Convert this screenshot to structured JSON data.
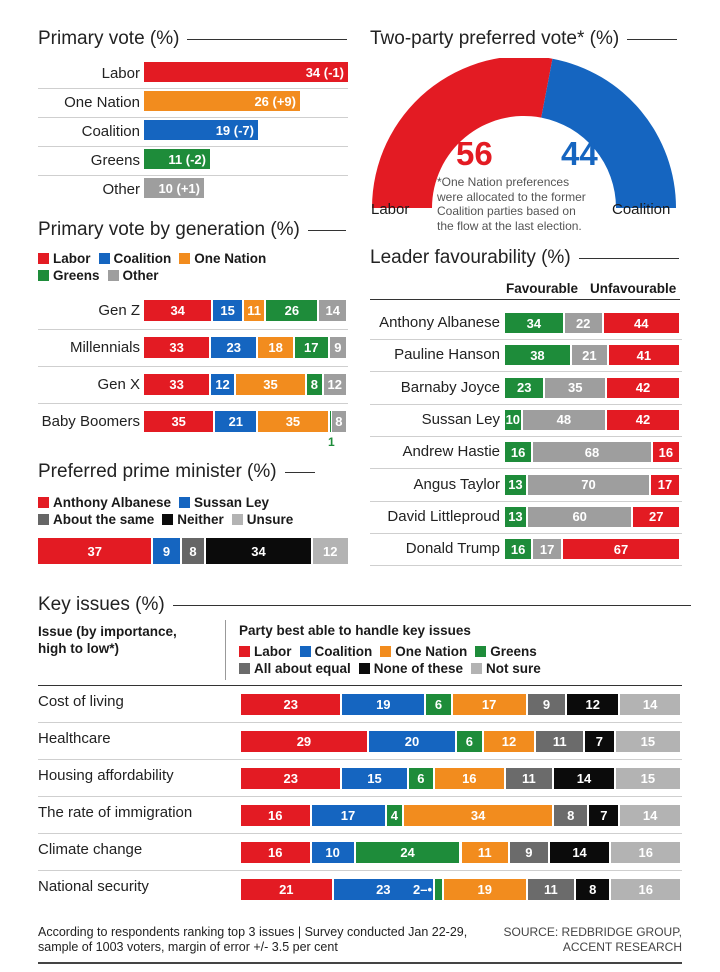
{
  "colors": {
    "labor": "#e31b23",
    "coalition": "#1565c0",
    "one_nation": "#f28c1e",
    "greens": "#1e8c3a",
    "other": "#9e9e9e",
    "same": "#666666",
    "neither": "#0b0b0b",
    "unsure": "#b3b3b3",
    "equal": "#6b6b6b"
  },
  "primary": {
    "title": "Primary vote (%)",
    "rows": [
      {
        "label": "Labor",
        "value": 34,
        "text": "34 (-1)",
        "color": "labor"
      },
      {
        "label": "One Nation",
        "value": 26,
        "text": "26 (+9)",
        "color": "one_nation"
      },
      {
        "label": "Coalition",
        "value": 19,
        "text": "19 (-7)",
        "color": "coalition"
      },
      {
        "label": "Greens",
        "value": 11,
        "text": "11 (-2)",
        "color": "greens"
      },
      {
        "label": "Other",
        "value": 10,
        "text": "10 (+1)",
        "color": "other"
      }
    ]
  },
  "tpp": {
    "title": "Two-party preferred vote* (%)",
    "labor_value": 56,
    "coalition_value": 44,
    "labor_text": "56",
    "coalition_text": "44",
    "labor_label": "Labor",
    "coalition_label": "Coalition",
    "note": [
      "*One Nation preferences",
      "were allocated to the former",
      "Coalition parties based on",
      "the flow at the last election."
    ]
  },
  "generation": {
    "title": "Primary vote by generation (%)",
    "legend": [
      {
        "label": "Labor",
        "color": "labor"
      },
      {
        "label": "Coalition",
        "color": "coalition"
      },
      {
        "label": "One Nation",
        "color": "one_nation"
      },
      {
        "label": "Greens",
        "color": "greens"
      },
      {
        "label": "Other",
        "color": "other"
      }
    ],
    "rows": [
      {
        "label": "Gen Z",
        "segs": [
          {
            "v": 34,
            "t": "34",
            "c": "labor"
          },
          {
            "v": 15,
            "t": "15",
            "c": "coalition"
          },
          {
            "v": 11,
            "t": "11",
            "c": "one_nation"
          },
          {
            "v": 26,
            "t": "26",
            "c": "greens"
          },
          {
            "v": 14,
            "t": "14",
            "c": "other"
          }
        ]
      },
      {
        "label": "Millennials",
        "segs": [
          {
            "v": 33,
            "t": "33",
            "c": "labor"
          },
          {
            "v": 23,
            "t": "23",
            "c": "coalition"
          },
          {
            "v": 18,
            "t": "18",
            "c": "one_nation"
          },
          {
            "v": 17,
            "t": "17",
            "c": "greens"
          },
          {
            "v": 9,
            "t": "9",
            "c": "other"
          }
        ]
      },
      {
        "label": "Gen X",
        "segs": [
          {
            "v": 33,
            "t": "33",
            "c": "labor"
          },
          {
            "v": 12,
            "t": "12",
            "c": "coalition"
          },
          {
            "v": 35,
            "t": "35",
            "c": "one_nation"
          },
          {
            "v": 8,
            "t": "8",
            "c": "greens"
          },
          {
            "v": 12,
            "t": "12",
            "c": "other"
          }
        ]
      },
      {
        "label": "Baby Boomers",
        "segs": [
          {
            "v": 35,
            "t": "35",
            "c": "labor"
          },
          {
            "v": 21,
            "t": "21",
            "c": "coalition"
          },
          {
            "v": 35,
            "t": "35",
            "c": "one_nation"
          },
          {
            "v": 1,
            "t": "",
            "c": "greens"
          },
          {
            "v": 8,
            "t": "8",
            "c": "other"
          }
        ],
        "note": "1"
      }
    ]
  },
  "ppm": {
    "title": "Preferred prime minister (%)",
    "legend": [
      {
        "label": "Anthony Albanese",
        "color": "labor"
      },
      {
        "label": "Sussan Ley",
        "color": "coalition"
      },
      {
        "label": "About the same",
        "color": "same"
      },
      {
        "label": "Neither",
        "color": "neither"
      },
      {
        "label": "Unsure",
        "color": "unsure"
      }
    ],
    "segs": [
      {
        "v": 37,
        "t": "37",
        "c": "labor"
      },
      {
        "v": 9,
        "t": "9",
        "c": "coalition"
      },
      {
        "v": 8,
        "t": "8",
        "c": "same"
      },
      {
        "v": 34,
        "t": "34",
        "c": "neither"
      },
      {
        "v": 12,
        "t": "12",
        "c": "unsure"
      }
    ]
  },
  "leader": {
    "title": "Leader favourability (%)",
    "col_fav": "Favourable",
    "col_unfav": "Unfavourable",
    "rows": [
      {
        "label": "Anthony Albanese",
        "fav": 34,
        "mid": 22,
        "unfav": 44
      },
      {
        "label": "Pauline Hanson",
        "fav": 38,
        "mid": 21,
        "unfav": 41
      },
      {
        "label": "Barnaby Joyce",
        "fav": 23,
        "mid": 35,
        "unfav": 42
      },
      {
        "label": "Sussan Ley",
        "fav": 10,
        "mid": 48,
        "unfav": 42
      },
      {
        "label": "Andrew Hastie",
        "fav": 16,
        "mid": 68,
        "unfav": 16
      },
      {
        "label": "Angus Taylor",
        "fav": 13,
        "mid": 70,
        "unfav": 17
      },
      {
        "label": "David Littleproud",
        "fav": 13,
        "mid": 60,
        "unfav": 27
      },
      {
        "label": "Donald Trump",
        "fav": 16,
        "mid": 17,
        "unfav": 67
      }
    ]
  },
  "issues": {
    "title": "Key issues (%)",
    "col_issue": [
      "Issue (by importance,",
      "high to low*)"
    ],
    "col_party": "Party best able to handle key issues",
    "legend": [
      {
        "label": "Labor",
        "color": "labor"
      },
      {
        "label": "Coalition",
        "color": "coalition"
      },
      {
        "label": "One Nation",
        "color": "one_nation"
      },
      {
        "label": "Greens",
        "color": "greens"
      },
      {
        "label": "All about equal",
        "color": "equal"
      },
      {
        "label": "None of these",
        "color": "neither"
      },
      {
        "label": "Not sure",
        "color": "unsure"
      }
    ],
    "rows": [
      {
        "label": "Cost of living",
        "segs": [
          {
            "v": 23,
            "t": "23",
            "c": "labor"
          },
          {
            "v": 19,
            "t": "19",
            "c": "coalition"
          },
          {
            "v": 6,
            "t": "6",
            "c": "greens"
          },
          {
            "v": 17,
            "t": "17",
            "c": "one_nation"
          },
          {
            "v": 9,
            "t": "9",
            "c": "equal"
          },
          {
            "v": 12,
            "t": "12",
            "c": "neither"
          },
          {
            "v": 14,
            "t": "14",
            "c": "unsure"
          }
        ]
      },
      {
        "label": "Healthcare",
        "segs": [
          {
            "v": 29,
            "t": "29",
            "c": "labor"
          },
          {
            "v": 20,
            "t": "20",
            "c": "coalition"
          },
          {
            "v": 6,
            "t": "6",
            "c": "greens"
          },
          {
            "v": 12,
            "t": "12",
            "c": "one_nation"
          },
          {
            "v": 11,
            "t": "11",
            "c": "equal"
          },
          {
            "v": 7,
            "t": "7",
            "c": "neither"
          },
          {
            "v": 15,
            "t": "15",
            "c": "unsure"
          }
        ]
      },
      {
        "label": "Housing affordability",
        "segs": [
          {
            "v": 23,
            "t": "23",
            "c": "labor"
          },
          {
            "v": 15,
            "t": "15",
            "c": "coalition"
          },
          {
            "v": 6,
            "t": "6",
            "c": "greens"
          },
          {
            "v": 16,
            "t": "16",
            "c": "one_nation"
          },
          {
            "v": 11,
            "t": "11",
            "c": "equal"
          },
          {
            "v": 14,
            "t": "14",
            "c": "neither"
          },
          {
            "v": 15,
            "t": "15",
            "c": "unsure"
          }
        ]
      },
      {
        "label": "The rate of immigration",
        "segs": [
          {
            "v": 16,
            "t": "16",
            "c": "labor"
          },
          {
            "v": 17,
            "t": "17",
            "c": "coalition"
          },
          {
            "v": 4,
            "t": "4",
            "c": "greens"
          },
          {
            "v": 34,
            "t": "34",
            "c": "one_nation"
          },
          {
            "v": 8,
            "t": "8",
            "c": "equal"
          },
          {
            "v": 7,
            "t": "7",
            "c": "neither"
          },
          {
            "v": 14,
            "t": "14",
            "c": "unsure"
          }
        ]
      },
      {
        "label": "Climate change",
        "segs": [
          {
            "v": 16,
            "t": "16",
            "c": "labor"
          },
          {
            "v": 10,
            "t": "10",
            "c": "coalition"
          },
          {
            "v": 24,
            "t": "24",
            "c": "greens"
          },
          {
            "v": 11,
            "t": "11",
            "c": "one_nation"
          },
          {
            "v": 9,
            "t": "9",
            "c": "equal"
          },
          {
            "v": 14,
            "t": "14",
            "c": "neither"
          },
          {
            "v": 16,
            "t": "16",
            "c": "unsure"
          }
        ]
      },
      {
        "label": "National security",
        "segs": [
          {
            "v": 21,
            "t": "21",
            "c": "labor"
          },
          {
            "v": 23,
            "t": "23",
            "c": "coalition"
          },
          {
            "v": 2,
            "t": "",
            "c": "greens"
          },
          {
            "v": 19,
            "t": "19",
            "c": "one_nation"
          },
          {
            "v": 11,
            "t": "11",
            "c": "equal"
          },
          {
            "v": 8,
            "t": "8",
            "c": "neither"
          },
          {
            "v": 16,
            "t": "16",
            "c": "unsure"
          }
        ],
        "note": "2"
      }
    ]
  },
  "footer": {
    "left": [
      "According to respondents ranking top 3 issues | Survey conducted Jan 22-29,",
      "sample of 1003 voters, margin of error +/- 3.5 per cent"
    ],
    "right": [
      "SOURCE: REDBRIDGE GROUP,",
      "ACCENT RESEARCH"
    ]
  },
  "chart_data": [
    {
      "type": "bar",
      "title": "Primary vote (%)",
      "categories": [
        "Labor",
        "One Nation",
        "Coalition",
        "Greens",
        "Other"
      ],
      "values": [
        34,
        26,
        19,
        11,
        10
      ],
      "changes": [
        "-1",
        "+9",
        "-7",
        "-2",
        "+1"
      ]
    },
    {
      "type": "pie",
      "title": "Two-party preferred vote* (%)",
      "categories": [
        "Labor",
        "Coalition"
      ],
      "values": [
        56,
        44
      ]
    },
    {
      "type": "bar",
      "stacked": true,
      "title": "Primary vote by generation (%)",
      "categories": [
        "Gen Z",
        "Millennials",
        "Gen X",
        "Baby Boomers"
      ],
      "series": [
        {
          "name": "Labor",
          "values": [
            34,
            33,
            33,
            35
          ]
        },
        {
          "name": "Coalition",
          "values": [
            15,
            23,
            12,
            21
          ]
        },
        {
          "name": "One Nation",
          "values": [
            11,
            18,
            35,
            35
          ]
        },
        {
          "name": "Greens",
          "values": [
            26,
            17,
            8,
            1
          ]
        },
        {
          "name": "Other",
          "values": [
            14,
            9,
            12,
            8
          ]
        }
      ]
    },
    {
      "type": "bar",
      "stacked": true,
      "title": "Preferred prime minister (%)",
      "categories": [
        "Anthony Albanese",
        "Sussan Ley",
        "About the same",
        "Neither",
        "Unsure"
      ],
      "values": [
        37,
        9,
        8,
        34,
        12
      ]
    },
    {
      "type": "bar",
      "stacked": true,
      "title": "Leader favourability (%)",
      "categories": [
        "Anthony Albanese",
        "Pauline Hanson",
        "Barnaby Joyce",
        "Sussan Ley",
        "Andrew Hastie",
        "Angus Taylor",
        "David Littleproud",
        "Donald Trump"
      ],
      "series": [
        {
          "name": "Favourable",
          "values": [
            34,
            38,
            23,
            10,
            16,
            13,
            13,
            16
          ]
        },
        {
          "name": "Neutral",
          "values": [
            22,
            21,
            35,
            48,
            68,
            70,
            60,
            17
          ]
        },
        {
          "name": "Unfavourable",
          "values": [
            44,
            41,
            42,
            42,
            16,
            17,
            27,
            67
          ]
        }
      ]
    },
    {
      "type": "bar",
      "stacked": true,
      "title": "Key issues (%)",
      "categories": [
        "Cost of living",
        "Healthcare",
        "Housing affordability",
        "The rate of immigration",
        "Climate change",
        "National security"
      ],
      "series": [
        {
          "name": "Labor",
          "values": [
            23,
            29,
            23,
            16,
            16,
            21
          ]
        },
        {
          "name": "Coalition",
          "values": [
            19,
            20,
            15,
            17,
            10,
            23
          ]
        },
        {
          "name": "Greens",
          "values": [
            6,
            6,
            6,
            4,
            24,
            2
          ]
        },
        {
          "name": "One Nation",
          "values": [
            17,
            12,
            16,
            34,
            11,
            19
          ]
        },
        {
          "name": "All about equal",
          "values": [
            9,
            11,
            11,
            8,
            9,
            11
          ]
        },
        {
          "name": "None of these",
          "values": [
            12,
            7,
            14,
            7,
            14,
            8
          ]
        },
        {
          "name": "Not sure",
          "values": [
            14,
            15,
            15,
            14,
            16,
            16
          ]
        }
      ]
    }
  ]
}
